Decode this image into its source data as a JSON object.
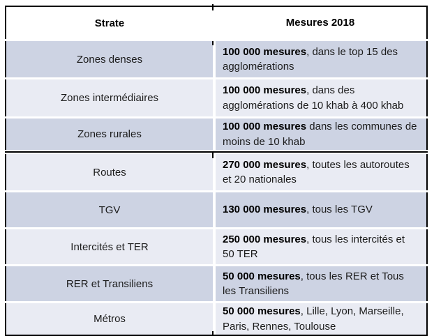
{
  "colors": {
    "border": "#000000",
    "row_shaded": "#cdd3e3",
    "row_plain": "#e9ebf3",
    "header_bg": "#ffffff",
    "text": "#1c1c1c",
    "text_bold": "#000000",
    "page_bg": "#ffffff"
  },
  "table": {
    "columns": [
      {
        "label": "Strate"
      },
      {
        "label": "Mesures 2018"
      }
    ],
    "rows": [
      {
        "strate": "Zones denses",
        "measure_bold": "100 000 mesures",
        "measure_rest": ", dans le top 15 des agglomérations"
      },
      {
        "strate": "Zones intermédiaires",
        "measure_bold": "100 000 mesures",
        "measure_rest": ", dans des agglomérations de 10 khab à 400 khab"
      },
      {
        "strate": "Zones rurales",
        "measure_bold": "100 000 mesures",
        "measure_rest": " dans les communes de moins de 10 khab"
      },
      {
        "strate": "Routes",
        "measure_bold": "270 000 mesures",
        "measure_rest": ", toutes les autoroutes et 20 nationales"
      },
      {
        "strate": "TGV",
        "measure_bold": "130 000 mesures",
        "measure_rest": ", tous les TGV"
      },
      {
        "strate": "Intercités et TER",
        "measure_bold": "250 000 mesures",
        "measure_rest": ", tous les intercités et 50 TER"
      },
      {
        "strate": "RER et Transiliens",
        "measure_bold": "50 000 mesures",
        "measure_rest": ", tous les RER et Tous les Transiliens"
      },
      {
        "strate": "Métros",
        "measure_bold": "50 000 mesures",
        "measure_rest": ", Lille, Lyon, Marseille, Paris, Rennes, Toulouse"
      }
    ]
  }
}
